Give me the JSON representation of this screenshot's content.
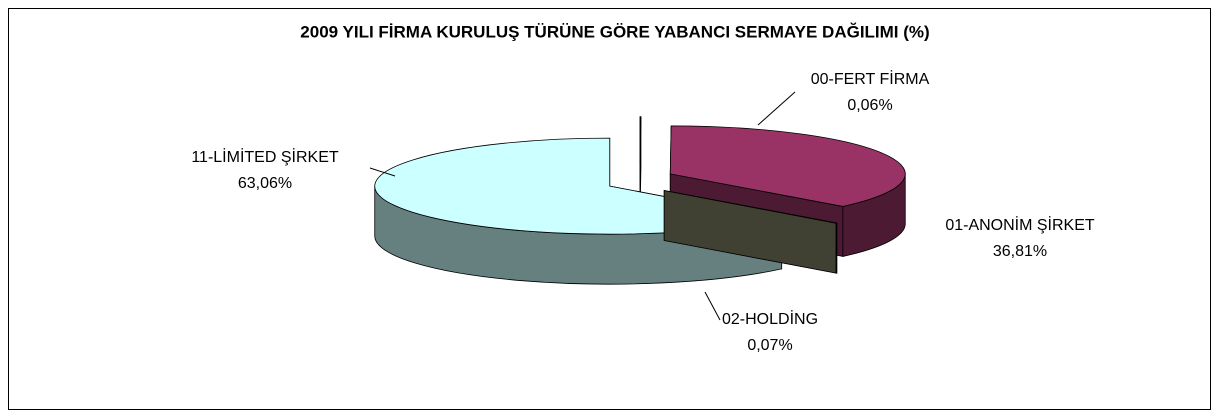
{
  "chart_data": {
    "type": "pie3d",
    "title": "2009 YILI FİRMA KURULUŞ TÜRÜNE GÖRE YABANCI SERMAYE DAĞILIMI (%)",
    "categories": [
      "00-FERT FİRMA",
      "01-ANONİM ŞİRKET",
      "02-HOLDİNG",
      "11-LİMİTED ŞİRKET"
    ],
    "values": [
      0.06,
      36.81,
      0.07,
      63.06
    ],
    "value_labels": [
      "0,06%",
      "36,81%",
      "0,07%",
      "63,06%"
    ],
    "colors": [
      "#333399",
      "#993366",
      "#808066",
      "#ccffff"
    ]
  }
}
